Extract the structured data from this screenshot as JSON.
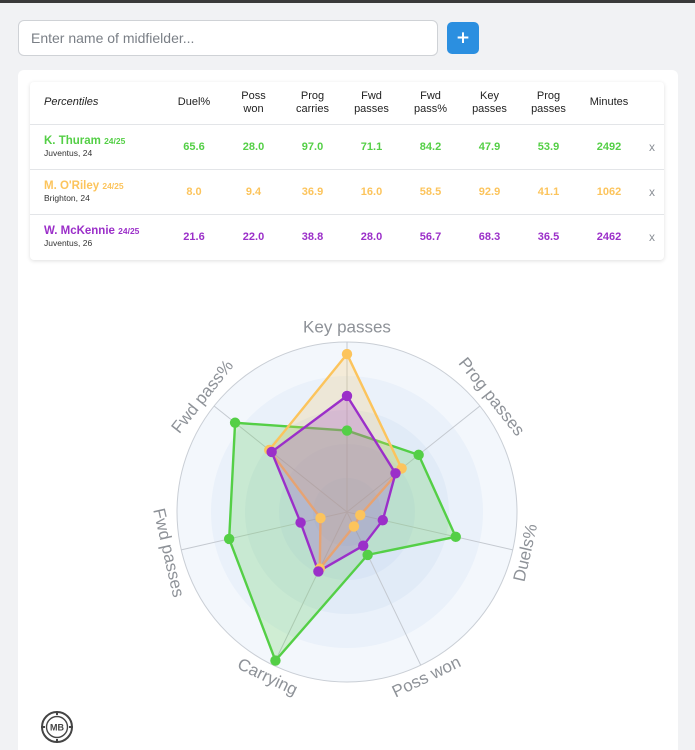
{
  "search": {
    "placeholder": "Enter name of midfielder..."
  },
  "add_button": {
    "label": "+"
  },
  "table": {
    "corner_label": "Percentiles",
    "columns": [
      {
        "line1": "Duel%",
        "line2": ""
      },
      {
        "line1": "Poss",
        "line2": "won"
      },
      {
        "line1": "Prog",
        "line2": "carries"
      },
      {
        "line1": "Fwd",
        "line2": "passes"
      },
      {
        "line1": "Fwd",
        "line2": "pass%"
      },
      {
        "line1": "Key",
        "line2": "passes"
      },
      {
        "line1": "Prog",
        "line2": "passes"
      },
      {
        "line1": "Minutes",
        "line2": ""
      }
    ],
    "remove_label": "x",
    "players": [
      {
        "name": "K. Thuram",
        "season": "24/25",
        "club": "Juventus, 24",
        "color": "#54cf46",
        "values": [
          "65.6",
          "28.0",
          "97.0",
          "71.1",
          "84.2",
          "47.9",
          "53.9",
          "2492"
        ]
      },
      {
        "name": "M. O'Riley",
        "season": "24/25",
        "club": "Brighton, 24",
        "color": "#fcc45c",
        "values": [
          "8.0",
          "9.4",
          "36.9",
          "16.0",
          "58.5",
          "92.9",
          "41.1",
          "1062"
        ]
      },
      {
        "name": "W. McKennie",
        "season": "24/25",
        "club": "Juventus, 26",
        "color": "#9b2fc9",
        "values": [
          "21.6",
          "22.0",
          "38.8",
          "28.0",
          "56.7",
          "68.3",
          "36.5",
          "2462"
        ]
      }
    ]
  },
  "chart_data": {
    "type": "radar",
    "axes": [
      "Key passes",
      "Prog passes",
      "Duels%",
      "Poss won",
      "Carrying",
      "Fwd passes",
      "Fwd pass%"
    ],
    "range": [
      0,
      100
    ],
    "series": [
      {
        "name": "K. Thuram",
        "color": "#54cf46",
        "values": [
          47.9,
          53.9,
          65.6,
          28.0,
          97.0,
          71.1,
          84.2
        ]
      },
      {
        "name": "M. O'Riley",
        "color": "#fcc45c",
        "values": [
          92.9,
          41.1,
          8.0,
          9.4,
          36.9,
          16.0,
          58.5
        ]
      },
      {
        "name": "W. McKennie",
        "color": "#9b2fc9",
        "values": [
          68.3,
          36.5,
          21.6,
          22.0,
          38.8,
          28.0,
          56.7
        ]
      }
    ]
  },
  "logo": {
    "text": "MB"
  }
}
